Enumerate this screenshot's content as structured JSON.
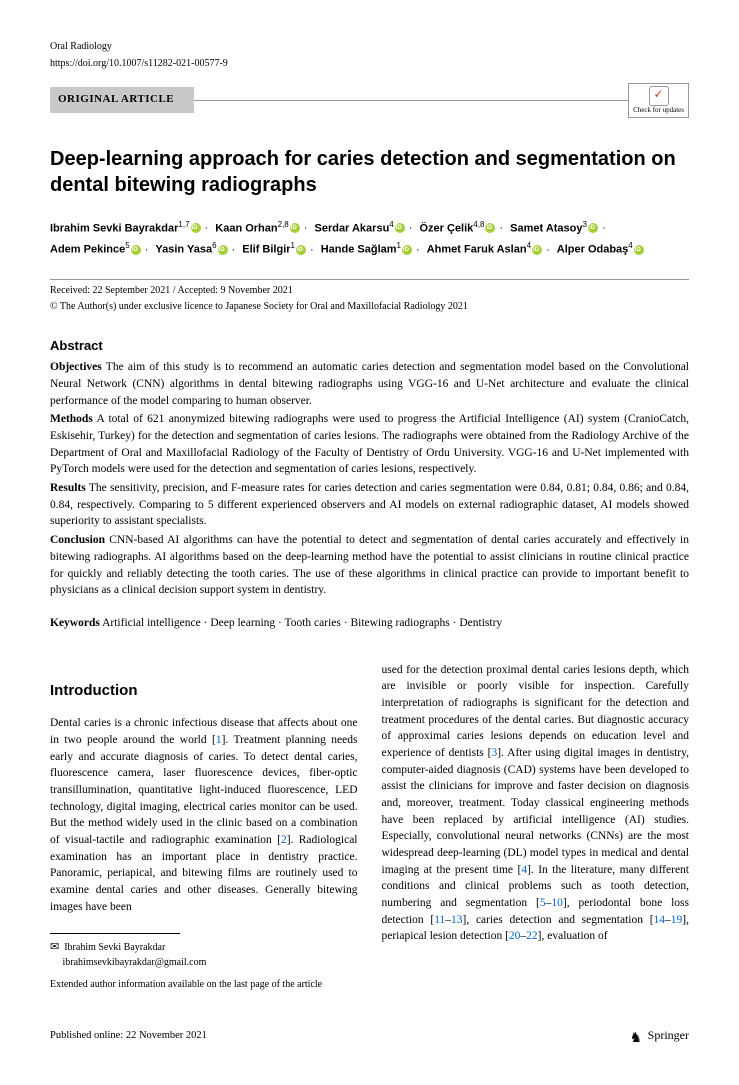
{
  "journal": "Oral Radiology",
  "doi": "https://doi.org/10.1007/s11282-021-00577-9",
  "article_type": "ORIGINAL ARTICLE",
  "check_updates": "Check for updates",
  "title": "Deep-learning approach for caries detection and segmentation on dental bitewing radiographs",
  "authors": [
    {
      "name": "Ibrahim Sevki Bayrakdar",
      "affil": "1,7"
    },
    {
      "name": "Kaan Orhan",
      "affil": "2,8"
    },
    {
      "name": "Serdar Akarsu",
      "affil": "4"
    },
    {
      "name": "Özer Çelik",
      "affil": "4,8"
    },
    {
      "name": "Samet Atasoy",
      "affil": "3"
    },
    {
      "name": "Adem Pekince",
      "affil": "5"
    },
    {
      "name": "Yasin Yasa",
      "affil": "6"
    },
    {
      "name": "Elif Bilgir",
      "affil": "1"
    },
    {
      "name": "Hande Sağlam",
      "affil": "1"
    },
    {
      "name": "Ahmet Faruk Aslan",
      "affil": "4"
    },
    {
      "name": "Alper Odabaş",
      "affil": "4"
    }
  ],
  "dates": "Received: 22 September 2021 / Accepted: 9 November 2021",
  "copyright": "© The Author(s) under exclusive licence to Japanese Society for Oral and Maxillofacial Radiology 2021",
  "abstract_heading": "Abstract",
  "abstract": {
    "objectives_label": "Objectives",
    "objectives": "  The aim of this study is to recommend an automatic caries detection and segmentation model based on the Convolutional Neural Network (CNN) algorithms in dental bitewing radiographs using VGG-16 and U-Net architecture and evaluate the clinical performance of the model comparing to human observer.",
    "methods_label": "Methods",
    "methods": "  A total of 621 anonymized bitewing radiographs were used to progress the Artificial Intelligence (AI) system (CranioCatch, Eskisehir, Turkey) for the detection and segmentation of caries lesions. The radiographs were obtained from the Radiology Archive of the Department of Oral and Maxillofacial Radiology of the Faculty of Dentistry of Ordu University. VGG-16 and U-Net implemented with PyTorch models were used for the detection and segmentation of caries lesions, respectively.",
    "results_label": "Results",
    "results": "  The sensitivity, precision, and F-measure rates for caries detection and caries segmentation were 0.84, 0.81; 0.84, 0.86; and 0.84, 0.84, respectively. Comparing to 5 different experienced observers and AI models on external radiographic dataset, AI models showed superiority to assistant specialists.",
    "conclusion_label": "Conclusion",
    "conclusion": "  CNN-based AI algorithms can have the potential to detect and segmentation of dental caries accurately and effectively in bitewing radiographs. AI algorithms based on the deep-learning method have the potential to assist clinicians in routine clinical practice for quickly and reliably detecting the tooth caries. The use of these algorithms in clinical practice can provide to important benefit to physicians as a clinical decision support system in dentistry."
  },
  "keywords_label": "Keywords",
  "keywords": "  Artificial intelligence · Deep learning · Tooth caries · Bitewing radiographs · Dentistry",
  "intro_heading": "Introduction",
  "intro_col1_a": "Dental caries is a chronic infectious disease that affects about one in two people around the world [",
  "intro_ref1": "1",
  "intro_col1_b": "]. Treatment planning needs early and accurate diagnosis of caries. To detect dental caries, fluorescence camera, laser fluorescence devices, fiber-optic transillumination, quantitative light-induced fluorescence, LED technology, digital imaging, electrical caries monitor can be used. But the method widely used in the clinic based on a combination of visual-tactile and radiographic examination [",
  "intro_ref2": "2",
  "intro_col1_c": "]. Radiological examination has an important place in dentistry practice. Panoramic, periapical, and bitewing films are routinely used to examine dental caries and other diseases. Generally bitewing images have been",
  "intro_col2_a": "used for the detection proximal dental caries lesions depth, which are invisible or poorly visible for inspection. Carefully interpretation of radiographs is significant for the detection and treatment procedures of the dental caries. But diagnostic accuracy of approximal caries lesions depends on education level and experience of dentists [",
  "intro_ref3": "3",
  "intro_col2_b": "]. After using digital images in dentistry, computer-aided diagnosis (CAD) systems have been developed to assist the clinicians for improve and faster decision on diagnosis and, moreover, treatment. Today classical engineering methods have been replaced by artificial intelligence (AI) studies. Especially, convolutional neural networks (CNNs) are the most widespread deep-learning (DL) model types in medical and dental imaging at the present time [",
  "intro_ref4": "4",
  "intro_col2_c": "]. In the literature, many different conditions and clinical problems such as tooth detection, numbering and segmentation [",
  "intro_ref5": "5",
  "intro_col2_d": "–",
  "intro_ref10": "10",
  "intro_col2_e": "], periodontal bone loss detection [",
  "intro_ref11": "11",
  "intro_col2_f": "–",
  "intro_ref13": "13",
  "intro_col2_g": "], caries detection and segmentation [",
  "intro_ref14": "14",
  "intro_col2_h": "–",
  "intro_ref19": "19",
  "intro_col2_i": "], periapical lesion detection [",
  "intro_ref20": "20",
  "intro_col2_j": "–",
  "intro_ref22": "22",
  "intro_col2_k": "], evaluation of",
  "corresponding_name": "Ibrahim Sevki Bayrakdar",
  "corresponding_email": "ibrahimsevkibayrakdar@gmail.com",
  "extended_info": "Extended author information available on the last page of the article",
  "published": "Published online: 22 November 2021",
  "publisher": "Springer"
}
